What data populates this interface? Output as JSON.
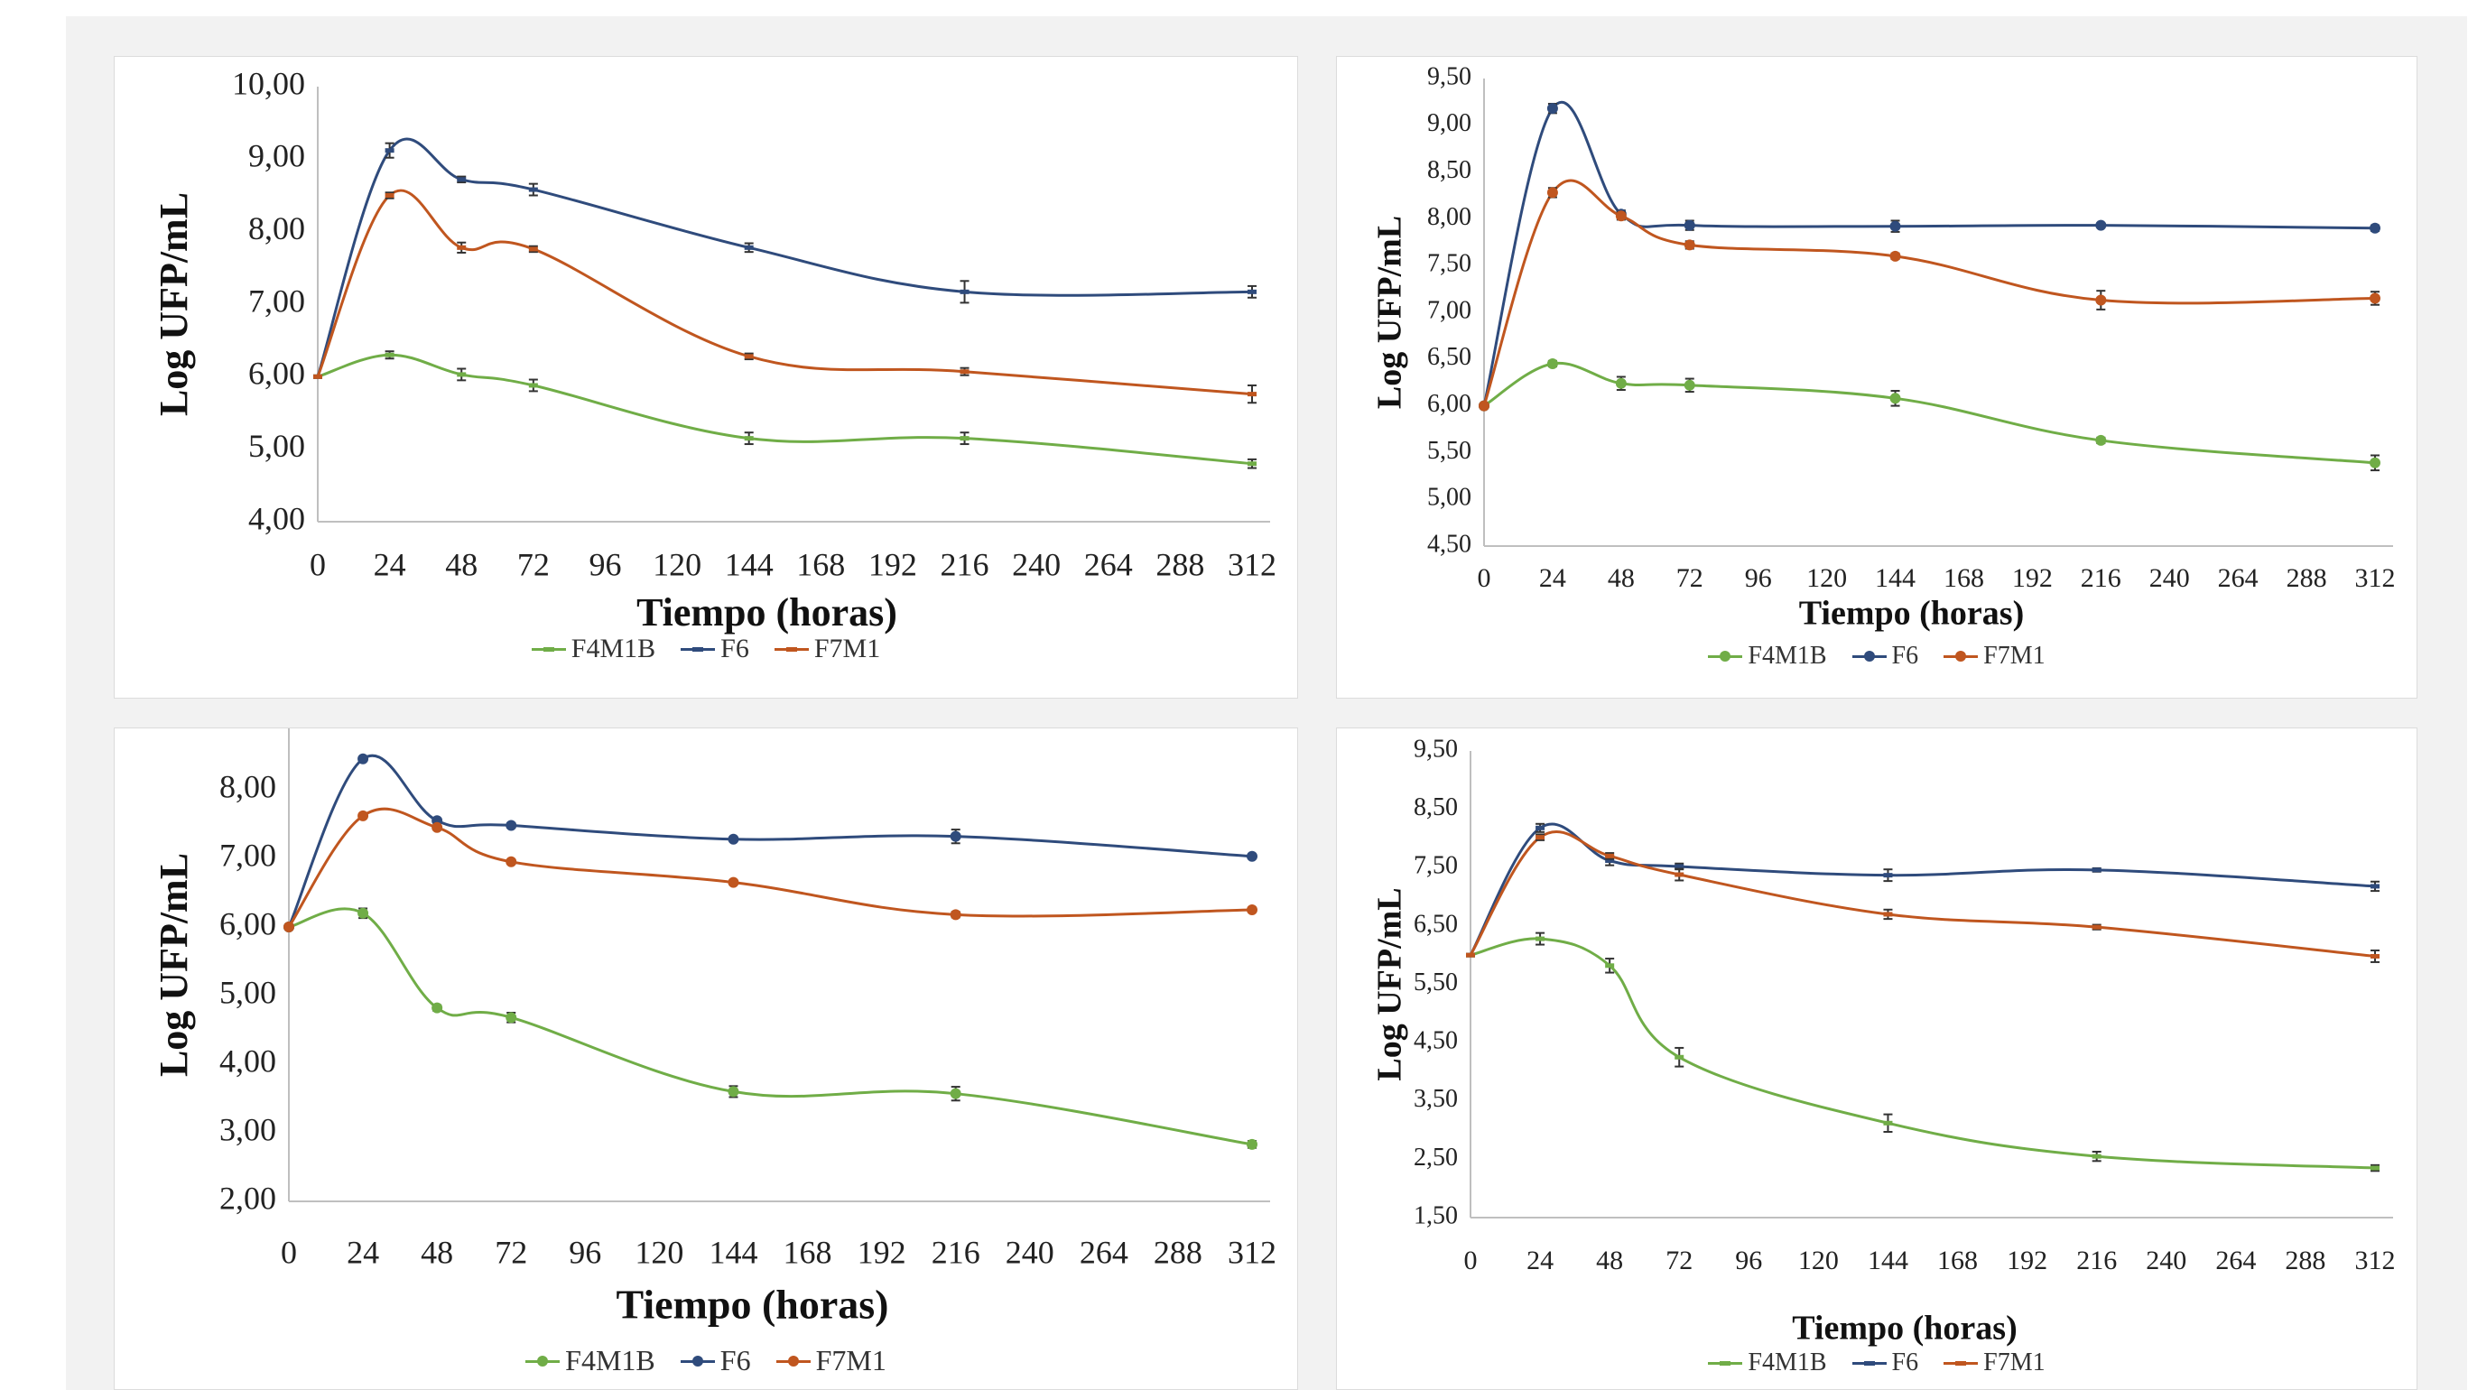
{
  "chart_data": [
    {
      "type": "line",
      "xlabel": "Tiempo (horas)",
      "ylabel": "Log UFP/mL",
      "x_ticks": [
        "0",
        "24",
        "48",
        "72",
        "96",
        "120",
        "144",
        "168",
        "192",
        "216",
        "240",
        "264",
        "288",
        "312"
      ],
      "y_ticks": [
        "4,00",
        "5,00",
        "6,00",
        "7,00",
        "8,00",
        "9,00",
        "10,00"
      ],
      "ylim": [
        4,
        10
      ],
      "xlim": [
        0,
        312
      ],
      "legend_position": "bottom",
      "series": [
        {
          "name": "F4M1B",
          "color": "#70ad47",
          "x": [
            0,
            24,
            48,
            72,
            144,
            216,
            312
          ],
          "y": [
            6.0,
            6.3,
            6.03,
            5.88,
            5.15,
            5.15,
            4.8
          ],
          "err": [
            0,
            0.05,
            0.08,
            0.08,
            0.08,
            0.08,
            0.06
          ]
        },
        {
          "name": "F6",
          "color": "#2f4b7c",
          "x": [
            0,
            24,
            48,
            72,
            144,
            216,
            312
          ],
          "y": [
            6.0,
            9.12,
            8.72,
            8.58,
            7.78,
            7.17,
            7.17
          ],
          "err": [
            0,
            0.1,
            0.04,
            0.08,
            0.06,
            0.15,
            0.08
          ]
        },
        {
          "name": "F7M1",
          "color": "#c0561f",
          "x": [
            0,
            24,
            48,
            72,
            144,
            216,
            312
          ],
          "y": [
            6.0,
            8.5,
            7.78,
            7.76,
            6.28,
            6.07,
            5.76
          ],
          "err": [
            0,
            0.04,
            0.07,
            0.04,
            0.04,
            0.05,
            0.12
          ]
        }
      ]
    },
    {
      "type": "line",
      "xlabel": "Tiempo (horas)",
      "ylabel": "Log UFP/mL",
      "x_ticks": [
        "0",
        "24",
        "48",
        "72",
        "96",
        "120",
        "144",
        "168",
        "192",
        "216",
        "240",
        "264",
        "288",
        "312"
      ],
      "y_ticks": [
        "4,50",
        "5,00",
        "5,50",
        "6,00",
        "6,50",
        "7,00",
        "7,50",
        "8,00",
        "8,50",
        "9,00",
        "9,50"
      ],
      "ylim": [
        4.5,
        9.5
      ],
      "xlim": [
        0,
        312
      ],
      "legend_position": "bottom",
      "series": [
        {
          "name": "F4M1B",
          "color": "#70ad47",
          "x": [
            0,
            24,
            48,
            72,
            144,
            216,
            312
          ],
          "y": [
            6.0,
            6.45,
            6.24,
            6.22,
            6.08,
            5.63,
            5.39
          ],
          "err": [
            0,
            0.03,
            0.07,
            0.07,
            0.08,
            0.03,
            0.08
          ]
        },
        {
          "name": "F6",
          "color": "#2f4b7c",
          "x": [
            0,
            24,
            48,
            72,
            144,
            216,
            312
          ],
          "y": [
            6.0,
            9.18,
            8.05,
            7.93,
            7.92,
            7.93,
            7.9
          ],
          "err": [
            0,
            0.05,
            0.04,
            0.05,
            0.06,
            0.02,
            0.03
          ]
        },
        {
          "name": "F7M1",
          "color": "#c0561f",
          "x": [
            0,
            24,
            48,
            72,
            144,
            216,
            312
          ],
          "y": [
            6.0,
            8.28,
            8.03,
            7.72,
            7.6,
            7.13,
            7.15
          ],
          "err": [
            0,
            0.05,
            0.04,
            0.04,
            0.03,
            0.1,
            0.07
          ]
        }
      ]
    },
    {
      "type": "line",
      "xlabel": "Tiempo (horas)",
      "ylabel": "Log UFP/mL",
      "x_ticks": [
        "0",
        "24",
        "48",
        "72",
        "96",
        "120",
        "144",
        "168",
        "192",
        "216",
        "240",
        "264",
        "288",
        "312"
      ],
      "y_ticks": [
        "2,00",
        "3,00",
        "4,00",
        "5,00",
        "6,00",
        "7,00",
        "8,00"
      ],
      "ylim": [
        2,
        9
      ],
      "xlim": [
        0,
        312
      ],
      "legend_position": "bottom",
      "series": [
        {
          "name": "F4M1B",
          "color": "#70ad47",
          "x": [
            0,
            24,
            48,
            72,
            144,
            216,
            312
          ],
          "y": [
            6.0,
            6.2,
            4.82,
            4.68,
            3.6,
            3.57,
            2.83
          ],
          "err": [
            0,
            0.07,
            0.04,
            0.07,
            0.08,
            0.1,
            0.05
          ]
        },
        {
          "name": "F6",
          "color": "#2f4b7c",
          "x": [
            0,
            24,
            48,
            72,
            144,
            216,
            312
          ],
          "y": [
            6.0,
            8.45,
            7.55,
            7.48,
            7.28,
            7.32,
            7.03
          ],
          "err": [
            0,
            0.03,
            0.03,
            0.03,
            0.03,
            0.1,
            0.03
          ]
        },
        {
          "name": "F7M1",
          "color": "#c0561f",
          "x": [
            0,
            24,
            48,
            72,
            144,
            216,
            312
          ],
          "y": [
            6.0,
            7.62,
            7.45,
            6.95,
            6.65,
            6.18,
            6.25
          ],
          "err": [
            0,
            0.03,
            0.03,
            0.03,
            0.03,
            0.04,
            0.03
          ]
        }
      ]
    },
    {
      "type": "line",
      "xlabel": "Tiempo (horas)",
      "ylabel": "Log UFP/mL",
      "x_ticks": [
        "0",
        "24",
        "48",
        "72",
        "96",
        "120",
        "144",
        "168",
        "192",
        "216",
        "240",
        "264",
        "288",
        "312"
      ],
      "y_ticks": [
        "1,50",
        "2,50",
        "3,50",
        "4,50",
        "5,50",
        "6,50",
        "7,50",
        "8,50",
        "9,50"
      ],
      "ylim": [
        1.5,
        9.5
      ],
      "xlim": [
        0,
        312
      ],
      "legend_position": "bottom",
      "series": [
        {
          "name": "F4M1B",
          "color": "#70ad47",
          "x": [
            0,
            24,
            48,
            72,
            144,
            216,
            312
          ],
          "y": [
            6.0,
            6.28,
            5.82,
            4.25,
            3.12,
            2.55,
            2.35
          ],
          "err": [
            0,
            0.1,
            0.12,
            0.16,
            0.15,
            0.08,
            0.05
          ]
        },
        {
          "name": "F6",
          "color": "#2f4b7c",
          "x": [
            0,
            24,
            48,
            72,
            144,
            216,
            312
          ],
          "y": [
            6.0,
            8.18,
            7.62,
            7.52,
            7.37,
            7.46,
            7.18
          ],
          "err": [
            0,
            0.07,
            0.08,
            0.05,
            0.1,
            0.03,
            0.08
          ]
        },
        {
          "name": "F7M1",
          "color": "#c0561f",
          "x": [
            0,
            24,
            48,
            72,
            144,
            216,
            312
          ],
          "y": [
            6.0,
            8.02,
            7.7,
            7.38,
            6.7,
            6.48,
            5.98
          ],
          "err": [
            0,
            0.05,
            0.05,
            0.1,
            0.08,
            0.04,
            0.1
          ]
        }
      ]
    }
  ]
}
